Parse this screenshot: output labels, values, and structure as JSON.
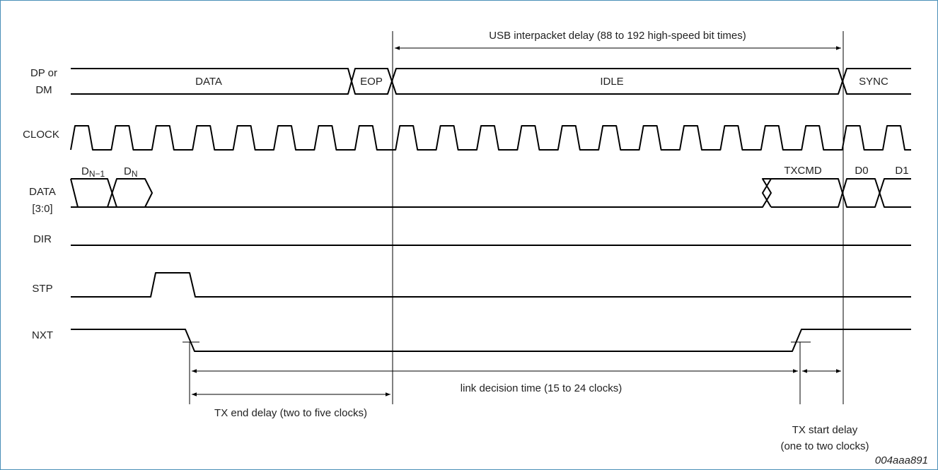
{
  "signals": [
    {
      "lines": [
        "DP or",
        "DM"
      ]
    },
    {
      "lines": [
        "CLOCK"
      ]
    },
    {
      "lines": [
        "DATA",
        "[3:0]"
      ]
    },
    {
      "lines": [
        "DIR"
      ]
    },
    {
      "lines": [
        "STP"
      ]
    },
    {
      "lines": [
        "NXT"
      ]
    }
  ],
  "bus_labels": {
    "data": "DATA",
    "eop": "EOP",
    "idle": "IDLE",
    "sync": "SYNC",
    "dn_minus_1": {
      "base": "D",
      "sub": "N−1"
    },
    "dn": {
      "base": "D",
      "sub": "N"
    },
    "txcmd": "TXCMD",
    "d0": "D0",
    "d1": "D1"
  },
  "annotations": {
    "interpacket": "USB interpacket delay (88 to 192 high-speed bit times)",
    "link_decision": "link decision time (15 to 24 clocks)",
    "tx_end": "TX end delay (two to five clocks)",
    "tx_start": [
      "TX start delay",
      "(one to two clocks)"
    ],
    "figure_id": "004aaa891"
  }
}
